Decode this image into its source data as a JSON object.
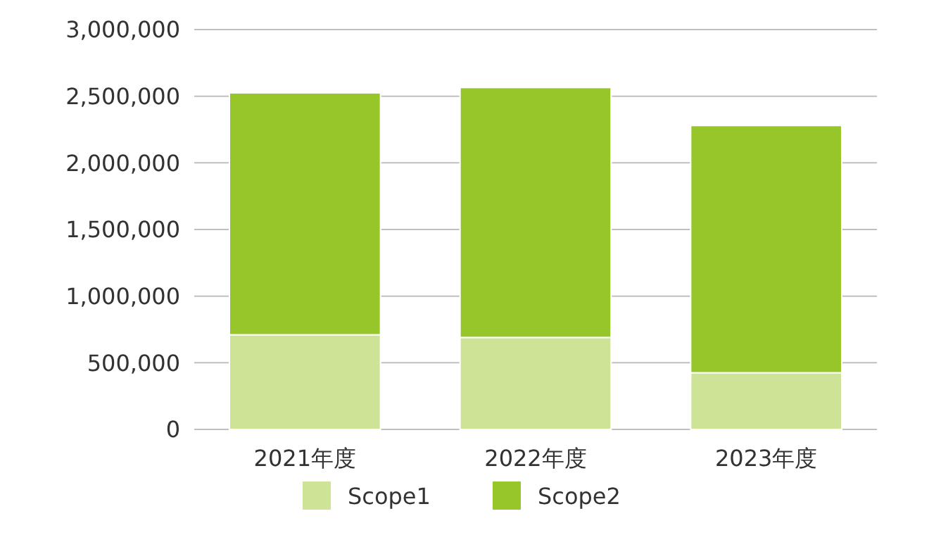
{
  "chart_data": {
    "type": "bar",
    "stacked": true,
    "categories": [
      "2021年度",
      "2022年度",
      "2023年度"
    ],
    "series": [
      {
        "name": "Scope1",
        "color": "#cde396",
        "values": [
          710000,
          690000,
          425000
        ]
      },
      {
        "name": "Scope2",
        "color": "#97c62b",
        "values": [
          1815000,
          1875000,
          1855000
        ]
      }
    ],
    "ylim": [
      0,
      3000000
    ],
    "yticks": [
      {
        "value": 0,
        "label": "0"
      },
      {
        "value": 500000,
        "label": "500,000"
      },
      {
        "value": 1000000,
        "label": "1,000,000"
      },
      {
        "value": 1500000,
        "label": "1,500,000"
      },
      {
        "value": 2000000,
        "label": "2,000,000"
      },
      {
        "value": 2500000,
        "label": "2,500,000"
      },
      {
        "value": 3000000,
        "label": "3,000,000"
      }
    ],
    "grid": "y",
    "legend": "bottom"
  }
}
